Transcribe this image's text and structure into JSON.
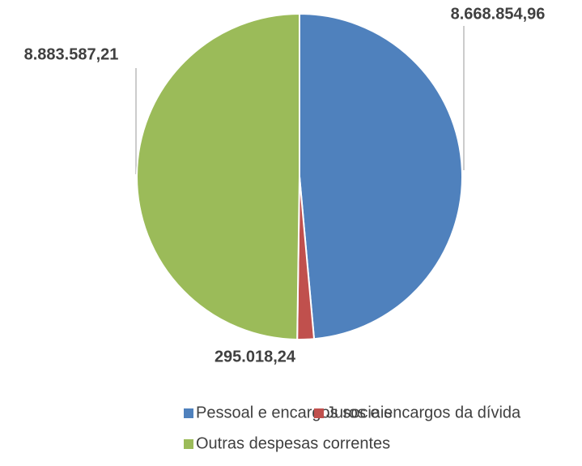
{
  "chart_data": {
    "type": "pie",
    "categories": [
      "Pessoal e encargos sociais",
      "Juros e encargos da dívida",
      "Outras despesas correntes"
    ],
    "values": [
      8668854.96,
      295018.24,
      8883587.21
    ],
    "value_labels": [
      "8.668.854,96",
      "295.018,24",
      "8.883.587,21"
    ],
    "colors": [
      "#4f81bd",
      "#c0504d",
      "#9bbb59"
    ],
    "legend": "bottom"
  }
}
